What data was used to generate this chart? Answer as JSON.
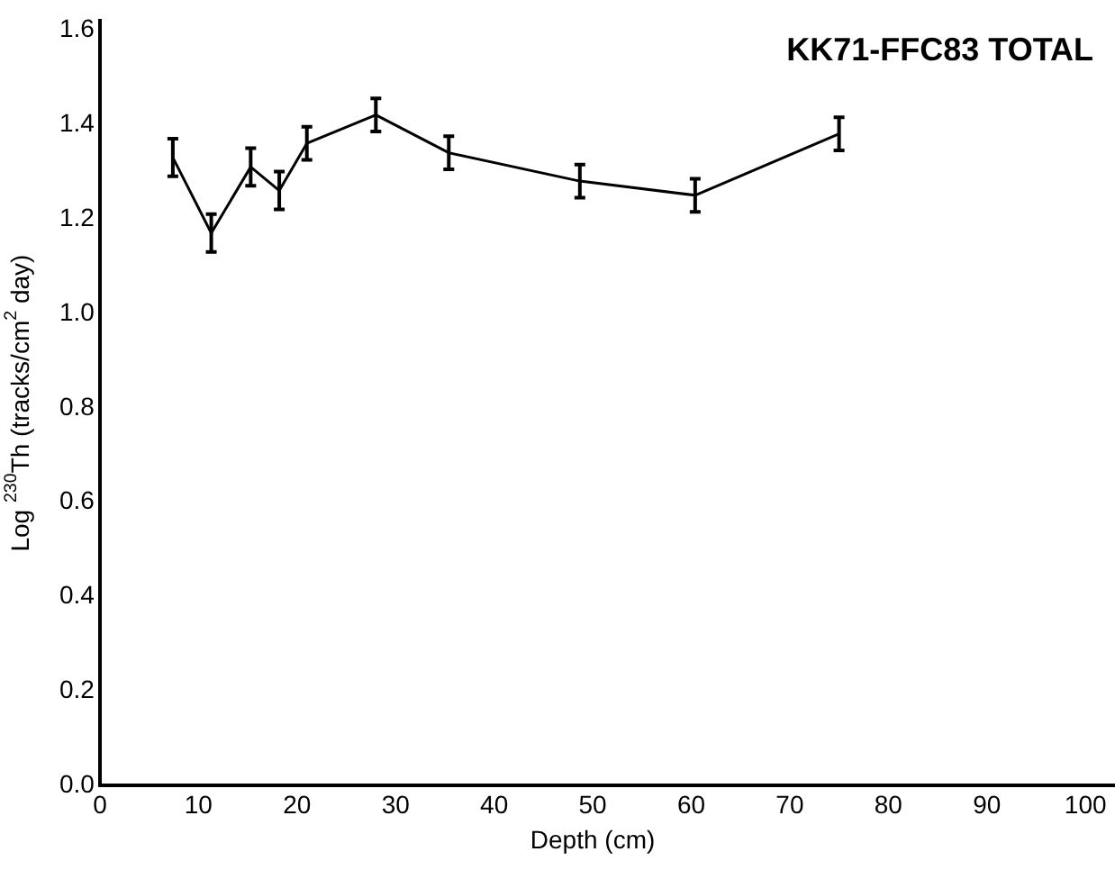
{
  "chart_data": {
    "type": "line",
    "title": "KK71-FFC83 TOTAL",
    "xlabel": "Depth (cm)",
    "ylabel": "Log $^{230}$Th (tracks/cm$^{2}$ day)",
    "x": [
      7.4,
      11.3,
      15.3,
      18.2,
      21,
      28,
      35.4,
      48.7,
      60.4,
      75
    ],
    "values": [
      1.33,
      1.17,
      1.31,
      1.26,
      1.36,
      1.42,
      1.34,
      1.28,
      1.25,
      1.38
    ],
    "errors": [
      0.04,
      0.04,
      0.04,
      0.04,
      0.035,
      0.035,
      0.035,
      0.035,
      0.035,
      0.035
    ],
    "color": "#000000",
    "marker": "none",
    "line_style": "solid",
    "grid": false,
    "legend": false,
    "xlim": [
      0,
      103
    ],
    "xticks": [
      0,
      10,
      20,
      30,
      40,
      50,
      60,
      70,
      80,
      90,
      100
    ],
    "ylim": [
      0,
      1.62
    ],
    "yticks": [
      {
        "value": 0,
        "label": "0.0"
      },
      0.2,
      0.4,
      0.6,
      0.8,
      {
        "value": 1,
        "label": "1.0"
      },
      1.2,
      1.4,
      1.6
    ]
  }
}
